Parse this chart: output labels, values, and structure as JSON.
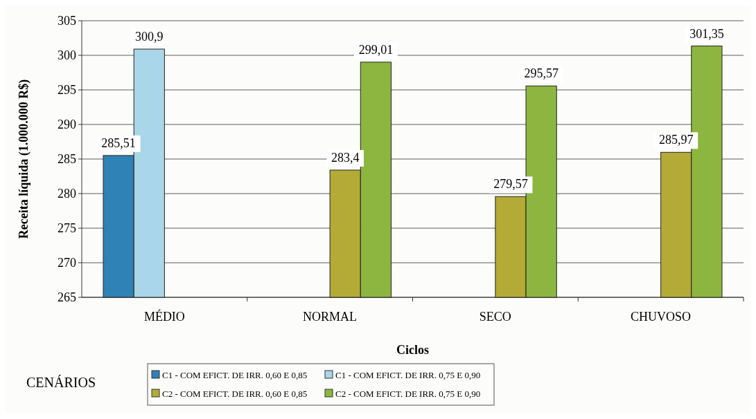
{
  "chart_data": {
    "type": "bar",
    "xlabel": "Ciclos",
    "ylabel": "Receita líquida (1.000.000 R$)",
    "legend_title": "CENÁRIOS",
    "categories": [
      "MÉDIO",
      "NORMAL",
      "SECO",
      "CHUVOSO"
    ],
    "series": [
      {
        "name": "C1 - COM EFICT. DE IRR. 0,60 E 0,85",
        "color": "#2f82b5",
        "values": [
          285.51,
          null,
          null,
          null
        ],
        "value_labels": [
          "285,51",
          null,
          null,
          null
        ]
      },
      {
        "name": "C1 - COM EFICT. DE IRR. 0,75 E 0,90",
        "color": "#a9d6e8",
        "values": [
          300.9,
          null,
          null,
          null
        ],
        "value_labels": [
          "300,9",
          null,
          null,
          null
        ]
      },
      {
        "name": "C2 - COM EFICT. DE IRR. 0,60 E 0,85",
        "color": "#b3ab35",
        "values": [
          null,
          283.4,
          279.57,
          285.97
        ],
        "value_labels": [
          null,
          "283,4",
          "279,57",
          "285,97"
        ]
      },
      {
        "name": "C2 - COM EFICT. DE IRR. 0,75 E 0,90",
        "color": "#8db640",
        "values": [
          null,
          299.01,
          295.57,
          301.35
        ],
        "value_labels": [
          null,
          "299,01",
          "295,57",
          "301,35"
        ]
      }
    ],
    "ylim": [
      265,
      305
    ],
    "yticks": [
      265,
      270,
      275,
      280,
      285,
      290,
      295,
      300,
      305
    ],
    "grid": "y",
    "legend": "bottom"
  }
}
